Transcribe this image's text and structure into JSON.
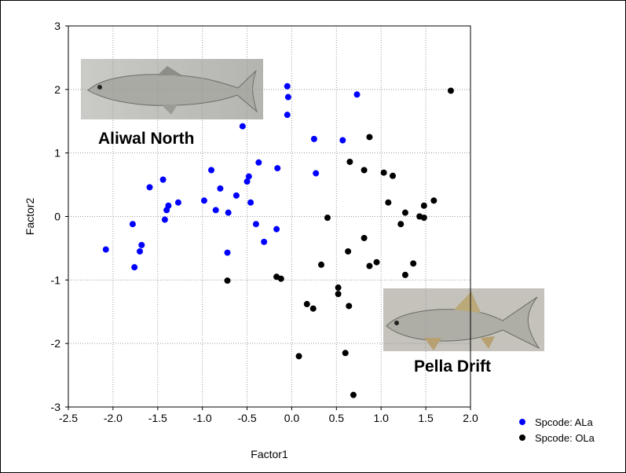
{
  "chart_data": {
    "type": "scatter",
    "title": "",
    "xlabel": "Factor1",
    "ylabel": "Factor2",
    "xlim": [
      -2.5,
      2.0
    ],
    "ylim": [
      -3,
      3
    ],
    "xticks": [
      "-2.5",
      "-2.0",
      "-1.5",
      "-1.0",
      "-0.5",
      "0.0",
      "0.5",
      "1.0",
      "1.5",
      "2.0"
    ],
    "yticks": [
      "3",
      "2",
      "1",
      "0",
      "-1",
      "-2",
      "-3"
    ],
    "grid": true,
    "legend_position": "bottom-right-outside",
    "annotations": [
      "Aliwal North",
      "Pella Drift"
    ],
    "series": [
      {
        "name": "Spcode: ALa",
        "color": "#0000ff",
        "points": [
          [
            -0.05,
            2.05
          ],
          [
            -0.04,
            1.88
          ],
          [
            0.73,
            1.92
          ],
          [
            -0.05,
            1.6
          ],
          [
            -0.55,
            1.42
          ],
          [
            0.25,
            1.22
          ],
          [
            0.57,
            1.2
          ],
          [
            -0.37,
            0.85
          ],
          [
            -0.16,
            0.76
          ],
          [
            0.27,
            0.68
          ],
          [
            -0.9,
            0.73
          ],
          [
            -1.44,
            0.58
          ],
          [
            -0.48,
            0.63
          ],
          [
            -1.59,
            0.46
          ],
          [
            -0.5,
            0.55
          ],
          [
            -0.8,
            0.44
          ],
          [
            -0.62,
            0.33
          ],
          [
            -0.98,
            0.25
          ],
          [
            -1.27,
            0.22
          ],
          [
            -1.38,
            0.17
          ],
          [
            -0.46,
            0.22
          ],
          [
            -1.4,
            0.1
          ],
          [
            -0.85,
            0.1
          ],
          [
            -0.71,
            0.06
          ],
          [
            -1.42,
            -0.05
          ],
          [
            -1.78,
            -0.12
          ],
          [
            -0.4,
            -0.12
          ],
          [
            -0.17,
            -0.2
          ],
          [
            -1.68,
            -0.45
          ],
          [
            -0.31,
            -0.4
          ],
          [
            -2.08,
            -0.52
          ],
          [
            -1.7,
            -0.55
          ],
          [
            -0.72,
            -0.57
          ],
          [
            -1.76,
            -0.8
          ]
        ]
      },
      {
        "name": "Spcode: OLa",
        "color": "#000000",
        "points": [
          [
            1.78,
            1.98
          ],
          [
            0.87,
            1.25
          ],
          [
            0.65,
            0.86
          ],
          [
            0.81,
            0.73
          ],
          [
            1.03,
            0.69
          ],
          [
            1.13,
            0.64
          ],
          [
            1.08,
            0.22
          ],
          [
            1.59,
            0.25
          ],
          [
            1.27,
            0.06
          ],
          [
            1.48,
            0.17
          ],
          [
            1.43,
            0.0
          ],
          [
            1.48,
            -0.02
          ],
          [
            0.4,
            -0.02
          ],
          [
            1.22,
            -0.12
          ],
          [
            0.81,
            -0.34
          ],
          [
            0.63,
            -0.55
          ],
          [
            0.95,
            -0.72
          ],
          [
            0.87,
            -0.78
          ],
          [
            0.33,
            -0.76
          ],
          [
            1.36,
            -0.74
          ],
          [
            1.27,
            -0.92
          ],
          [
            -0.17,
            -0.95
          ],
          [
            -0.12,
            -0.98
          ],
          [
            -0.72,
            -1.01
          ],
          [
            0.52,
            -1.12
          ],
          [
            0.52,
            -1.22
          ],
          [
            0.17,
            -1.38
          ],
          [
            0.64,
            -1.41
          ],
          [
            0.24,
            -1.45
          ],
          [
            0.6,
            -2.15
          ],
          [
            0.08,
            -2.2
          ],
          [
            0.69,
            -2.81
          ]
        ]
      }
    ]
  }
}
